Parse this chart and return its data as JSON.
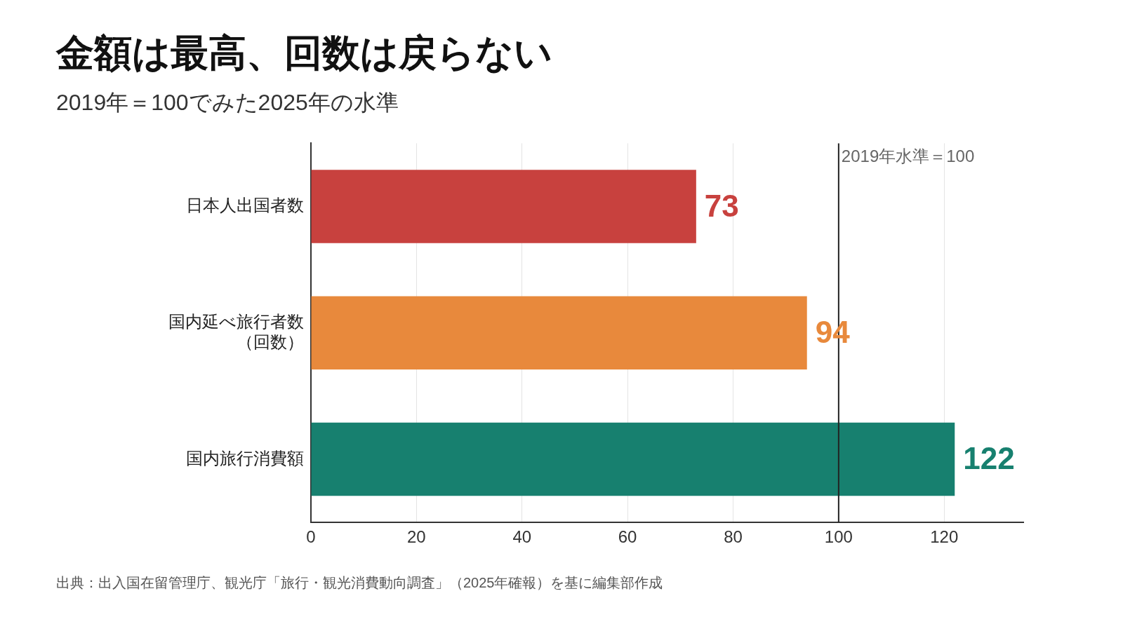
{
  "chart_data": {
    "type": "bar",
    "orientation": "horizontal",
    "title": "金額は最高、回数は戻らない",
    "subtitle": "2019年＝100でみた2025年の水準",
    "categories": [
      "日本人出国者数",
      "国内延べ旅行者数（回数）",
      "国内旅行消費額"
    ],
    "values": [
      73,
      94,
      122
    ],
    "colors": [
      "#c8413e",
      "#e8893c",
      "#17806f"
    ],
    "xlim": [
      0,
      135
    ],
    "xticks": [
      0,
      20,
      40,
      60,
      80,
      100,
      120
    ],
    "grid": "x",
    "data_labels": true,
    "ref_lines": [
      {
        "axis": "x",
        "value": 100,
        "label": "2019年水準＝100",
        "color": "#222222"
      }
    ],
    "annotations": [
      "出典：出入国在留管理庁、観光庁「旅行・観光消費動向調査」（2025年確報）を基に編集部作成"
    ]
  }
}
